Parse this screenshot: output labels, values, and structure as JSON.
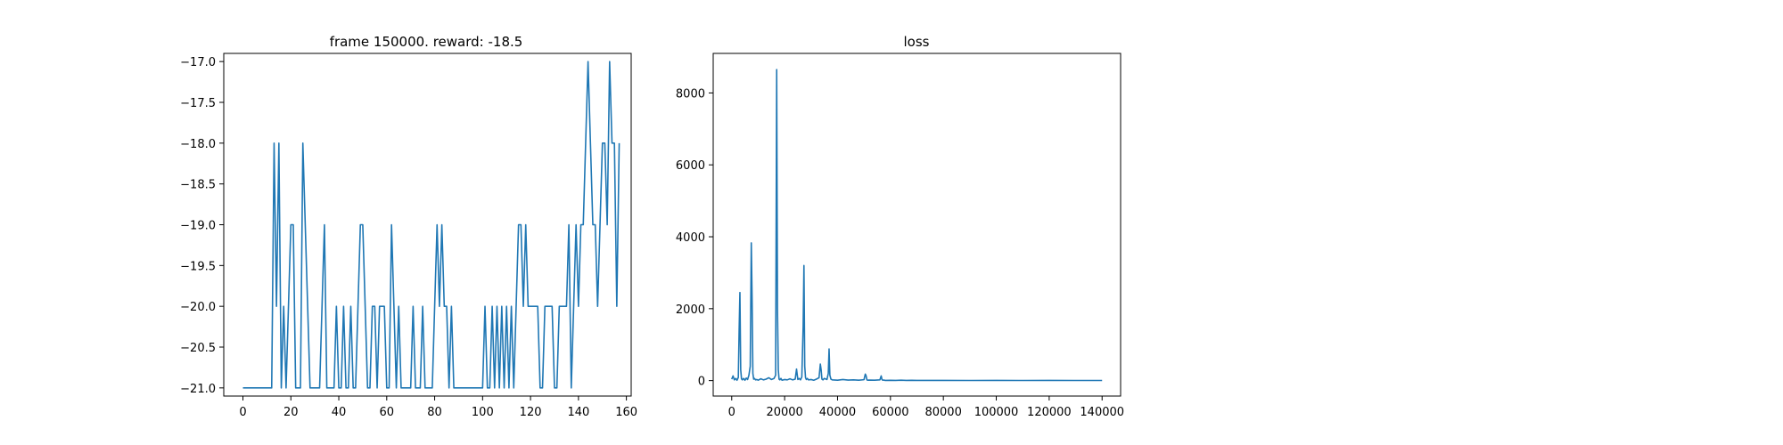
{
  "chart_data": [
    {
      "type": "line",
      "title": "frame 150000. reward: -18.5",
      "xlabel": "",
      "ylabel": "",
      "xlim": [
        -8,
        162
      ],
      "ylim": [
        -21.1,
        -16.9
      ],
      "xticks": [
        0,
        20,
        40,
        60,
        80,
        100,
        120,
        140,
        160
      ],
      "yticks": [
        -21.0,
        -20.5,
        -20.0,
        -19.5,
        -19.0,
        -18.5,
        -18.0,
        -17.5,
        -17.0
      ],
      "xtick_labels": [
        "0",
        "20",
        "40",
        "60",
        "80",
        "100",
        "120",
        "140",
        "160"
      ],
      "ytick_labels": [
        "−21.0",
        "−20.5",
        "−20.0",
        "−19.5",
        "−19.0",
        "−18.5",
        "−18.0",
        "−17.5",
        "−17.0"
      ],
      "grid": false,
      "legend": "none",
      "series": [
        {
          "color": "#1f77b4",
          "values": [
            -21,
            -21,
            -21,
            -21,
            -21,
            -21,
            -21,
            -21,
            -21,
            -21,
            -21,
            -21,
            -21,
            -18,
            -20,
            -18,
            -21,
            -20,
            -21,
            -20,
            -19,
            -19,
            -21,
            -21,
            -21,
            -18,
            -19,
            -20,
            -21,
            -21,
            -21,
            -21,
            -21,
            -20,
            -19,
            -21,
            -21,
            -21,
            -21,
            -20,
            -21,
            -21,
            -20,
            -21,
            -21,
            -20,
            -21,
            -21,
            -20,
            -19,
            -19,
            -20,
            -21,
            -21,
            -20,
            -20,
            -21,
            -20,
            -20,
            -20,
            -21,
            -21,
            -19,
            -20,
            -21,
            -20,
            -21,
            -21,
            -21,
            -21,
            -21,
            -20,
            -21,
            -21,
            -21,
            -20,
            -21,
            -21,
            -21,
            -21,
            -20,
            -19,
            -20,
            -19,
            -20,
            -20,
            -21,
            -20,
            -21,
            -21,
            -21,
            -21,
            -21,
            -21,
            -21,
            -21,
            -21,
            -21,
            -21,
            -21,
            -21,
            -20,
            -21,
            -21,
            -20,
            -21,
            -20,
            -21,
            -20,
            -21,
            -20,
            -21,
            -20,
            -21,
            -20,
            -19,
            -19,
            -20,
            -19,
            -20,
            -20,
            -20,
            -20,
            -20,
            -21,
            -21,
            -20,
            -20,
            -20,
            -20,
            -21,
            -21,
            -20,
            -20,
            -20,
            -20,
            -19,
            -21,
            -20,
            -19,
            -20,
            -19,
            -19,
            -18,
            -17,
            -18,
            -19,
            -19,
            -20,
            -19,
            -18,
            -18,
            -19,
            -17,
            -18,
            -18,
            -20,
            -18
          ]
        }
      ]
    },
    {
      "type": "line",
      "title": "loss",
      "xlabel": "",
      "ylabel": "",
      "xlim": [
        -7000,
        147000
      ],
      "ylim": [
        -430,
        9100
      ],
      "xticks": [
        0,
        20000,
        40000,
        60000,
        80000,
        100000,
        120000,
        140000
      ],
      "yticks": [
        0,
        2000,
        4000,
        6000,
        8000
      ],
      "xtick_labels": [
        "0",
        "20000",
        "40000",
        "60000",
        "80000",
        "100000",
        "120000",
        "140000"
      ],
      "ytick_labels": [
        "0",
        "2000",
        "4000",
        "6000",
        "8000"
      ],
      "grid": false,
      "legend": "none",
      "series": [
        {
          "color": "#1f77b4",
          "x": [
            0,
            500,
            1000,
            1500,
            2000,
            2500,
            2800,
            3100,
            3400,
            3700,
            4000,
            4500,
            5000,
            5500,
            6000,
            6500,
            7000,
            7400,
            7700,
            8000,
            8300,
            8600,
            9000,
            9500,
            10000,
            11000,
            12000,
            13000,
            14000,
            15000,
            16000,
            16600,
            17000,
            17300,
            17600,
            17900,
            18200,
            18600,
            19000,
            20000,
            21000,
            22000,
            23000,
            24000,
            24500,
            25000,
            25500,
            26000,
            26500,
            27000,
            27300,
            27600,
            27900,
            28200,
            28600,
            29000,
            30000,
            31000,
            32000,
            33000,
            33500,
            33800,
            34100,
            34500,
            35000,
            36000,
            36500,
            36800,
            37100,
            37500,
            38000,
            40000,
            42000,
            44000,
            46000,
            48000,
            50000,
            50500,
            50800,
            51100,
            51500,
            52000,
            54000,
            56000,
            56500,
            56800,
            57100,
            57500,
            58000,
            60000,
            62000,
            64000,
            66000,
            68000,
            70000,
            80000,
            90000,
            100000,
            110000,
            120000,
            130000,
            140000
          ],
          "values": [
            40,
            130,
            20,
            60,
            10,
            90,
            1400,
            2450,
            300,
            50,
            20,
            60,
            10,
            70,
            30,
            150,
            400,
            3830,
            2300,
            200,
            40,
            60,
            20,
            30,
            10,
            50,
            20,
            40,
            80,
            30,
            60,
            150,
            8650,
            2000,
            300,
            40,
            20,
            60,
            10,
            30,
            20,
            50,
            20,
            40,
            320,
            30,
            60,
            20,
            100,
            1500,
            3200,
            400,
            80,
            30,
            60,
            20,
            30,
            10,
            40,
            80,
            460,
            300,
            40,
            20,
            60,
            30,
            200,
            880,
            150,
            40,
            20,
            10,
            30,
            15,
            20,
            10,
            25,
            180,
            130,
            20,
            10,
            15,
            10,
            20,
            130,
            30,
            10,
            15,
            5,
            8,
            5,
            10,
            5,
            8,
            4,
            5,
            3,
            4,
            3,
            4,
            3,
            3
          ]
        }
      ]
    }
  ]
}
